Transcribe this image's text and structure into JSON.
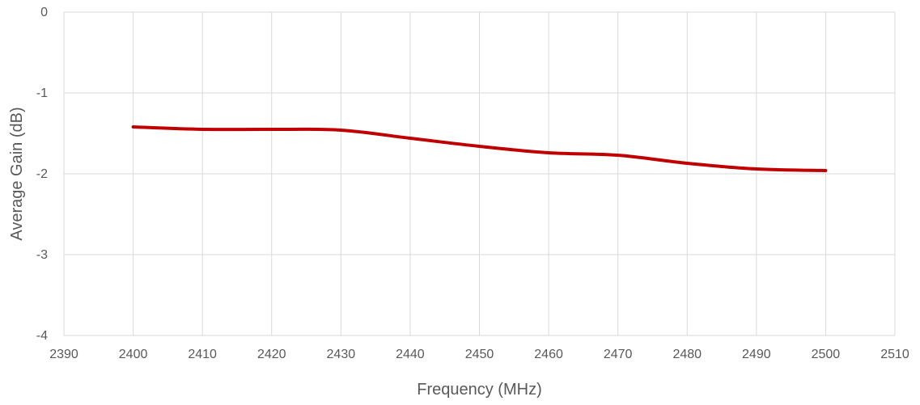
{
  "chart_data": {
    "type": "line",
    "title": "",
    "xlabel": "Frequency (MHz)",
    "ylabel": "Average Gain (dB)",
    "xlim": [
      2390,
      2510
    ],
    "ylim": [
      -4,
      0
    ],
    "x_ticks": [
      2390,
      2400,
      2410,
      2420,
      2430,
      2440,
      2450,
      2460,
      2470,
      2480,
      2490,
      2500,
      2510
    ],
    "y_ticks": [
      0,
      -1,
      -2,
      -3,
      -4
    ],
    "grid": true,
    "legend": "none",
    "series": [
      {
        "color": "#c00000",
        "smooth": true,
        "x": [
          2400,
          2410,
          2420,
          2430,
          2440,
          2450,
          2460,
          2470,
          2480,
          2490,
          2500
        ],
        "y": [
          -1.42,
          -1.45,
          -1.45,
          -1.46,
          -1.56,
          -1.66,
          -1.74,
          -1.77,
          -1.87,
          -1.94,
          -1.96
        ]
      }
    ]
  }
}
